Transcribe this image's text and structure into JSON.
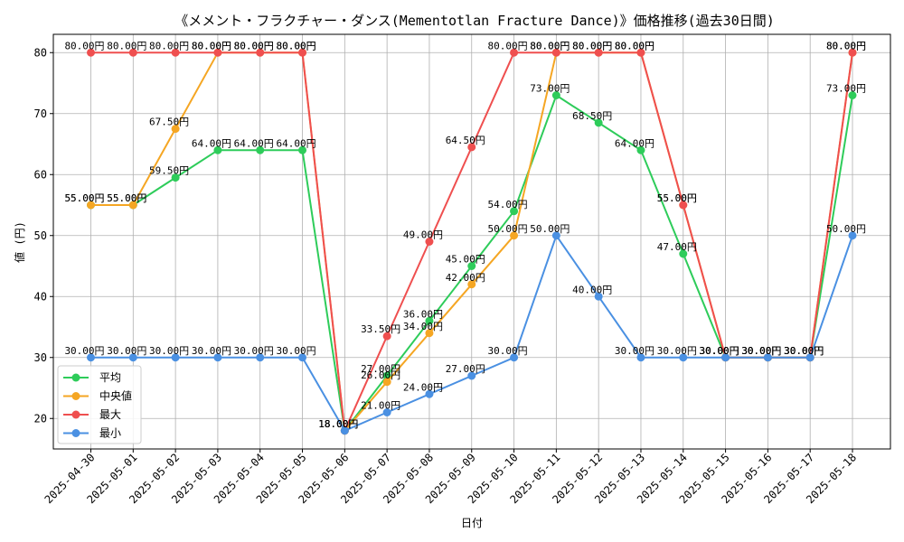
{
  "chart_data": {
    "type": "line",
    "title": "《メメント・フラクチャー・ダンス(Mementotlan Fracture Dance)》価格推移(過去30日間)",
    "xlabel": "日付",
    "ylabel": "値 (円)",
    "ylim": [
      15,
      83
    ],
    "yticks": [
      20,
      30,
      40,
      50,
      60,
      70,
      80
    ],
    "grid": true,
    "legend_position": "lower-left",
    "value_suffix": "円",
    "categories": [
      "2025-04-30",
      "2025-05-01",
      "2025-05-02",
      "2025-05-03",
      "2025-05-04",
      "2025-05-05",
      "2025-05-06",
      "2025-05-07",
      "2025-05-08",
      "2025-05-09",
      "2025-05-10",
      "2025-05-11",
      "2025-05-12",
      "2025-05-13",
      "2025-05-14",
      "2025-05-15",
      "2025-05-16",
      "2025-05-17",
      "2025-05-18"
    ],
    "series": [
      {
        "name": "平均",
        "color": "#2ecc5a",
        "values": [
          55,
          55,
          59.5,
          64,
          64,
          64,
          18,
          27,
          36,
          45,
          54,
          73,
          68.5,
          64,
          47,
          30,
          30,
          30,
          73
        ]
      },
      {
        "name": "中央値",
        "color": "#f5a623",
        "values": [
          55,
          55,
          67.5,
          80,
          80,
          80,
          18,
          26,
          34,
          42,
          50,
          80,
          80,
          80,
          55,
          30,
          30,
          30,
          80
        ]
      },
      {
        "name": "最大",
        "color": "#ef4f4f",
        "values": [
          80,
          80,
          80,
          80,
          80,
          80,
          18,
          33.5,
          49,
          64.5,
          80,
          80,
          80,
          80,
          55,
          30,
          30,
          30,
          80
        ]
      },
      {
        "name": "最小",
        "color": "#4a90e2",
        "values": [
          30,
          30,
          30,
          30,
          30,
          30,
          18,
          21,
          24,
          27,
          30,
          50,
          40,
          30,
          30,
          30,
          30,
          30,
          50
        ]
      }
    ]
  }
}
